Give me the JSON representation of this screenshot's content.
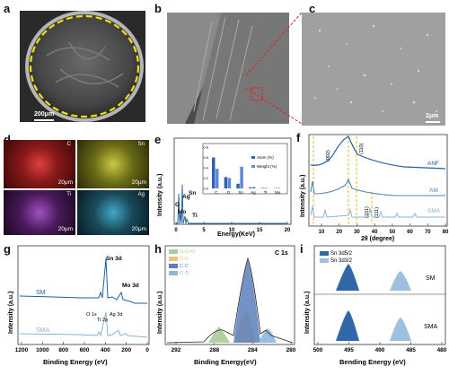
{
  "panels": {
    "a": {
      "label": "a",
      "scalebar": "200μm"
    },
    "b": {
      "label": "b"
    },
    "c": {
      "label": "c",
      "scalebar": "2μm"
    },
    "d": {
      "label": "d",
      "maps": [
        {
          "element": "C",
          "color": "#c43030",
          "scalebar": "20μm"
        },
        {
          "element": "Sn",
          "color": "#b8b830",
          "scalebar": "20μm"
        },
        {
          "element": "Ti",
          "color": "#a040c0",
          "scalebar": "20μm"
        },
        {
          "element": "Ag",
          "color": "#3aa0c0",
          "scalebar": "20μm"
        }
      ]
    },
    "e": {
      "label": "e"
    },
    "f": {
      "label": "f"
    },
    "g": {
      "label": "g"
    },
    "h": {
      "label": "h"
    },
    "i": {
      "label": "i"
    }
  },
  "chart_data": [
    {
      "id": "e",
      "type": "line",
      "title": "",
      "xlabel": "Energy(KeV)",
      "ylabel": "Intensity (a.u.)",
      "xlim": [
        0,
        20
      ],
      "xticks": [
        "0",
        "5",
        "10",
        "15",
        "20"
      ],
      "peak_labels": [
        "C",
        "O",
        "Mo",
        "Ag",
        "Sn",
        "Ti"
      ],
      "inset": {
        "type": "bar",
        "categories": [
          "C",
          "O",
          "Sn",
          "Ag",
          "Ti",
          "Mo"
        ],
        "series": [
          {
            "name": "Atom (%)",
            "values": [
              60,
              22,
              9,
              2,
              1,
              0.5
            ]
          },
          {
            "name": "Weight (%)",
            "values": [
              38,
              20,
              42,
              3,
              1,
              1
            ]
          }
        ],
        "yticks": [
          "0.0",
          "0.2",
          "0.4",
          "0.6",
          "0.8"
        ],
        "colors": [
          "#3060b0",
          "#5a8ad8"
        ]
      }
    },
    {
      "id": "f",
      "type": "line",
      "xlabel": "2θ (degree)",
      "ylabel": "Intensity (a.u.)",
      "xlim": [
        0,
        80
      ],
      "xticks": [
        "10",
        "20",
        "30",
        "40",
        "50",
        "60",
        "70",
        "80"
      ],
      "series": [
        {
          "name": "ANF",
          "color": "#1f5f9e"
        },
        {
          "name": "AM",
          "color": "#4f86b8"
        },
        {
          "name": "SMA",
          "color": "#8cb3d3"
        }
      ],
      "annotations": [
        "(002)",
        "(110)",
        "(101)",
        "(111)"
      ]
    },
    {
      "id": "g",
      "type": "line",
      "xlabel": "Binding Energy (eV)",
      "ylabel": "Intensity (a.u.)",
      "xlim": [
        1200,
        0
      ],
      "xticks": [
        "1200",
        "1000",
        "800",
        "600",
        "400",
        "200",
        "0"
      ],
      "series": [
        {
          "name": "SM",
          "color": "#1f5f9e"
        },
        {
          "name": "SMA",
          "color": "#8cb3d3"
        }
      ],
      "annotations": [
        "Sn 3d",
        "Mo 3d",
        "O 1s",
        "Ti 2p",
        "Ag 3d"
      ]
    },
    {
      "id": "h",
      "type": "line",
      "xlabel": "Binding Energy(eV)",
      "xlim": [
        292,
        280
      ],
      "xticks": [
        "292",
        "288",
        "284",
        "280"
      ],
      "corner_label": "C 1s",
      "legend": [
        {
          "name": "O-C=O",
          "color": "#a9cc9a"
        },
        {
          "name": "C-O",
          "color": "#f2c27a"
        },
        {
          "name": "C-C",
          "color": "#5b7fbd"
        },
        {
          "name": "C-Ti",
          "color": "#8fb7de"
        }
      ]
    },
    {
      "id": "i",
      "type": "line",
      "xlabel": "Bending Energy (eV)",
      "ylabel": "Intensity (a.u.)",
      "xlim": [
        500,
        480
      ],
      "xticks": [
        "500",
        "495",
        "490",
        "485",
        "480"
      ],
      "legend": [
        {
          "name": "Sn 3d5/2",
          "color": "#2f67a8"
        },
        {
          "name": "Sn 3d3/2",
          "color": "#9dc0e0"
        }
      ],
      "series": [
        {
          "name": "SM"
        },
        {
          "name": "SMA"
        }
      ]
    }
  ]
}
